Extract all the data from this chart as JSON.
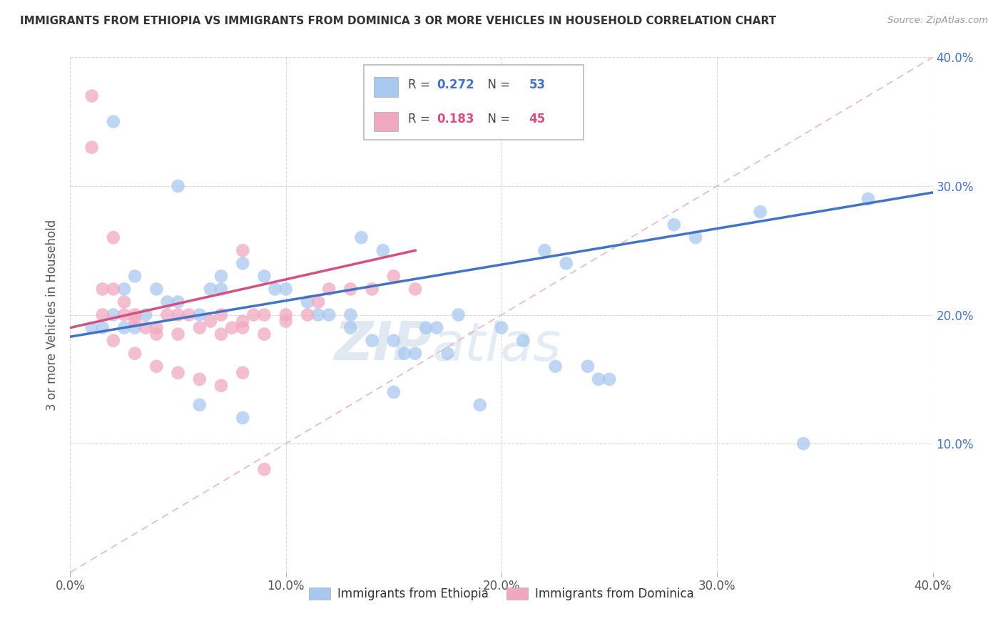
{
  "title": "IMMIGRANTS FROM ETHIOPIA VS IMMIGRANTS FROM DOMINICA 3 OR MORE VEHICLES IN HOUSEHOLD CORRELATION CHART",
  "source": "Source: ZipAtlas.com",
  "ylabel": "3 or more Vehicles in Household",
  "xlim": [
    0.0,
    0.4
  ],
  "ylim": [
    0.0,
    0.4
  ],
  "xtick_vals": [
    0.0,
    0.1,
    0.2,
    0.3,
    0.4
  ],
  "ytick_vals": [
    0.1,
    0.2,
    0.3,
    0.4
  ],
  "ethiopia_R": 0.272,
  "ethiopia_N": 53,
  "dominica_R": 0.183,
  "dominica_N": 45,
  "ethiopia_color": "#a8c8f0",
  "dominica_color": "#f0a8c0",
  "ethiopia_line_color": "#4472c4",
  "dominica_line_color": "#d45080",
  "diagonal_color": "#e8b0b8",
  "watermark_zip": "ZIP",
  "watermark_atlas": "atlas",
  "ethiopia_x": [
    0.02,
    0.05,
    0.03,
    0.025,
    0.015,
    0.01,
    0.02,
    0.025,
    0.03,
    0.035,
    0.04,
    0.045,
    0.05,
    0.06,
    0.065,
    0.07,
    0.08,
    0.09,
    0.095,
    0.1,
    0.11,
    0.115,
    0.12,
    0.13,
    0.135,
    0.14,
    0.145,
    0.15,
    0.155,
    0.16,
    0.165,
    0.17,
    0.175,
    0.18,
    0.19,
    0.2,
    0.21,
    0.22,
    0.225,
    0.23,
    0.24,
    0.245,
    0.25,
    0.28,
    0.29,
    0.32,
    0.34,
    0.37,
    0.06,
    0.07,
    0.08,
    0.13,
    0.15
  ],
  "ethiopia_y": [
    0.35,
    0.3,
    0.23,
    0.22,
    0.19,
    0.19,
    0.2,
    0.19,
    0.19,
    0.2,
    0.22,
    0.21,
    0.21,
    0.2,
    0.22,
    0.22,
    0.24,
    0.23,
    0.22,
    0.22,
    0.21,
    0.2,
    0.2,
    0.19,
    0.26,
    0.18,
    0.25,
    0.18,
    0.17,
    0.17,
    0.19,
    0.19,
    0.17,
    0.2,
    0.13,
    0.19,
    0.18,
    0.25,
    0.16,
    0.24,
    0.16,
    0.15,
    0.15,
    0.27,
    0.26,
    0.28,
    0.1,
    0.29,
    0.13,
    0.23,
    0.12,
    0.2,
    0.14
  ],
  "dominica_x": [
    0.01,
    0.01,
    0.015,
    0.015,
    0.02,
    0.02,
    0.025,
    0.025,
    0.03,
    0.03,
    0.035,
    0.04,
    0.04,
    0.045,
    0.05,
    0.05,
    0.055,
    0.06,
    0.065,
    0.07,
    0.07,
    0.075,
    0.08,
    0.08,
    0.085,
    0.09,
    0.09,
    0.1,
    0.1,
    0.11,
    0.115,
    0.12,
    0.13,
    0.14,
    0.15,
    0.16,
    0.02,
    0.03,
    0.04,
    0.05,
    0.06,
    0.07,
    0.08,
    0.09,
    0.08
  ],
  "dominica_y": [
    0.37,
    0.33,
    0.22,
    0.2,
    0.26,
    0.22,
    0.21,
    0.2,
    0.2,
    0.195,
    0.19,
    0.185,
    0.19,
    0.2,
    0.2,
    0.185,
    0.2,
    0.19,
    0.195,
    0.2,
    0.185,
    0.19,
    0.19,
    0.195,
    0.2,
    0.2,
    0.185,
    0.195,
    0.2,
    0.2,
    0.21,
    0.22,
    0.22,
    0.22,
    0.23,
    0.22,
    0.18,
    0.17,
    0.16,
    0.155,
    0.15,
    0.145,
    0.155,
    0.08,
    0.25
  ],
  "eth_line_x0": 0.0,
  "eth_line_x1": 0.4,
  "eth_line_y0": 0.183,
  "eth_line_y1": 0.295,
  "dom_line_x0": 0.0,
  "dom_line_x1": 0.16,
  "dom_line_y0": 0.19,
  "dom_line_y1": 0.25,
  "background_color": "#ffffff",
  "grid_color": "#d8d8d8"
}
